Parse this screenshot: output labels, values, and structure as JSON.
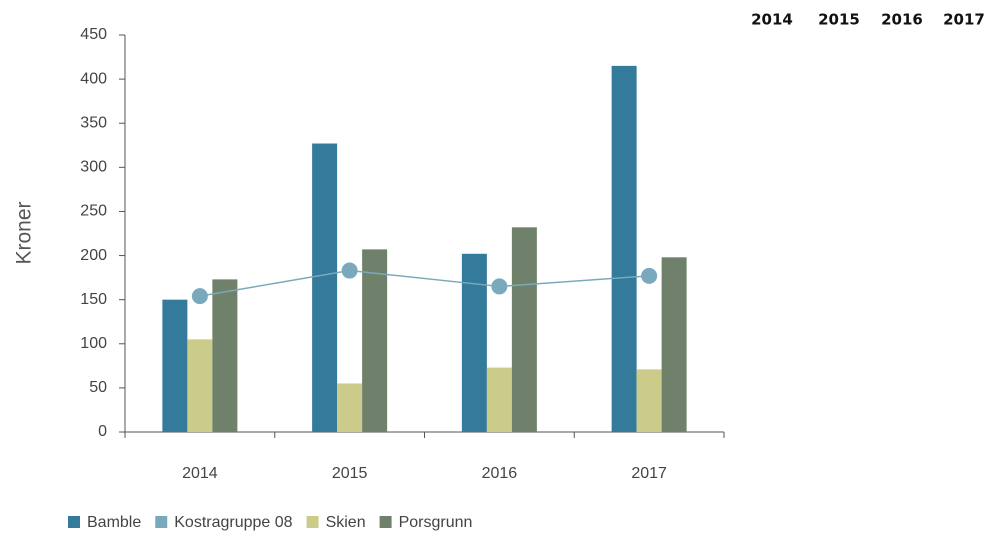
{
  "chart_data": {
    "type": "bar",
    "categories": [
      "2014",
      "2015",
      "2016",
      "2017"
    ],
    "series": [
      {
        "name": "Bamble",
        "color": "#347a9a",
        "values": [
          150,
          327,
          202,
          415
        ]
      },
      {
        "name": "Kostragruppe 08",
        "color": "#7aa9bd",
        "type": "line",
        "values": [
          154,
          183,
          165,
          177
        ]
      },
      {
        "name": "Skien",
        "color": "#cbcb8a",
        "values": [
          105,
          55,
          73,
          71
        ]
      },
      {
        "name": "Porsgrunn",
        "color": "#6f806b",
        "values": [
          173,
          207,
          232,
          198
        ]
      }
    ],
    "ylabel": "Kroner",
    "ylim": [
      0,
      450
    ],
    "yticks": [
      0,
      50,
      100,
      150,
      200,
      250,
      300,
      350,
      400,
      450
    ],
    "legend": "bottom"
  },
  "table": {
    "header": [
      "2014",
      "2015",
      "2016",
      "2017"
    ]
  }
}
